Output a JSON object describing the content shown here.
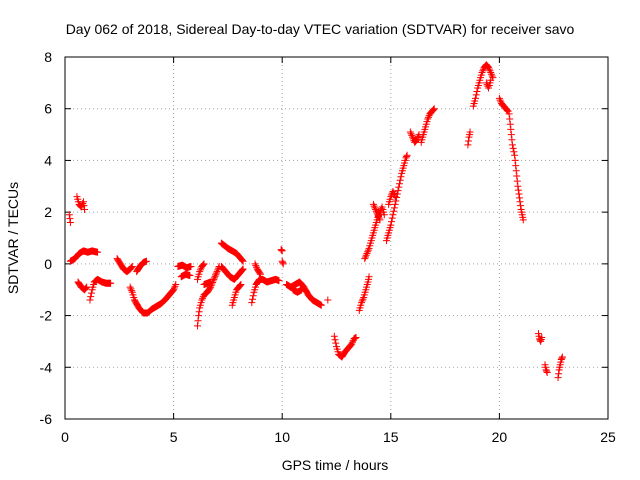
{
  "chart_data": {
    "type": "scatter",
    "title": "Day 062 of 2018, Sidereal Day-to-day VTEC variation (SDTVAR) for receiver savo",
    "xlabel": "GPS time / hours",
    "ylabel": "SDTVAR / TECUs",
    "xlim": [
      0,
      25
    ],
    "ylim": [
      -6,
      8
    ],
    "xticks": [
      0,
      5,
      10,
      15,
      20,
      25
    ],
    "yticks": [
      -6,
      -4,
      -2,
      0,
      2,
      4,
      6,
      8
    ],
    "grid": true,
    "marker": "+",
    "color": "#ff0000",
    "segments": [
      {
        "points": [
          [
            0.2,
            1.9
          ],
          [
            0.25,
            1.6
          ]
        ]
      },
      {
        "points": [
          [
            0.25,
            0.1
          ],
          [
            0.45,
            0.2
          ],
          [
            0.65,
            0.4
          ],
          [
            0.85,
            0.5
          ],
          [
            1.05,
            0.45
          ],
          [
            1.25,
            0.5
          ],
          [
            1.5,
            0.45
          ]
        ]
      },
      {
        "points": [
          [
            0.55,
            2.6
          ],
          [
            0.65,
            2.3
          ],
          [
            0.75,
            2.2
          ],
          [
            0.85,
            2.4
          ],
          [
            0.9,
            2.1
          ]
        ]
      },
      {
        "points": [
          [
            0.6,
            -0.7
          ],
          [
            0.75,
            -0.9
          ],
          [
            0.9,
            -1.0
          ],
          [
            1.0,
            -0.9
          ]
        ]
      },
      {
        "points": [
          [
            1.15,
            -1.4
          ],
          [
            1.25,
            -1.0
          ],
          [
            1.35,
            -0.7
          ],
          [
            1.5,
            -0.6
          ],
          [
            1.7,
            -0.7
          ],
          [
            1.9,
            -0.75
          ],
          [
            2.1,
            -0.75
          ]
        ]
      },
      {
        "points": [
          [
            2.4,
            0.2
          ],
          [
            2.55,
            0.0
          ],
          [
            2.7,
            -0.2
          ],
          [
            2.85,
            -0.3
          ],
          [
            3.0,
            -0.2
          ],
          [
            3.1,
            -0.1
          ]
        ]
      },
      {
        "points": [
          [
            3.0,
            -0.9
          ],
          [
            3.1,
            -1.1
          ],
          [
            3.2,
            -1.4
          ],
          [
            3.4,
            -1.7
          ],
          [
            3.6,
            -1.9
          ],
          [
            3.8,
            -1.9
          ],
          [
            4.0,
            -1.75
          ],
          [
            4.2,
            -1.65
          ],
          [
            4.4,
            -1.55
          ],
          [
            4.6,
            -1.4
          ],
          [
            4.8,
            -1.2
          ],
          [
            5.0,
            -1.0
          ],
          [
            5.1,
            -0.8
          ]
        ]
      },
      {
        "points": [
          [
            3.3,
            -0.3
          ],
          [
            3.45,
            -0.1
          ],
          [
            3.6,
            0.05
          ],
          [
            3.75,
            0.1
          ]
        ]
      },
      {
        "points": [
          [
            5.2,
            -0.1
          ],
          [
            5.4,
            -0.05
          ],
          [
            5.6,
            -0.15
          ],
          [
            5.8,
            -0.1
          ]
        ]
      },
      {
        "points": [
          [
            5.35,
            -0.5
          ],
          [
            5.55,
            -0.4
          ],
          [
            5.75,
            -0.45
          ]
        ]
      },
      {
        "points": [
          [
            6.1,
            -2.4
          ],
          [
            6.15,
            -2.0
          ],
          [
            6.2,
            -1.7
          ],
          [
            6.3,
            -1.4
          ],
          [
            6.4,
            -1.2
          ],
          [
            6.55,
            -1.1
          ],
          [
            6.7,
            -0.9
          ],
          [
            6.85,
            -0.6
          ],
          [
            7.0,
            -0.3
          ],
          [
            7.1,
            -0.1
          ]
        ]
      },
      {
        "points": [
          [
            6.1,
            -0.6
          ],
          [
            6.2,
            -0.3
          ],
          [
            6.3,
            -0.1
          ],
          [
            6.4,
            0.0
          ]
        ]
      },
      {
        "points": [
          [
            6.4,
            -0.8
          ],
          [
            6.55,
            -0.75
          ],
          [
            6.7,
            -0.7
          ]
        ]
      },
      {
        "points": [
          [
            7.2,
            0.8
          ],
          [
            7.35,
            0.7
          ],
          [
            7.5,
            0.6
          ],
          [
            7.7,
            0.5
          ],
          [
            7.9,
            0.4
          ],
          [
            8.1,
            0.2
          ],
          [
            8.2,
            0.1
          ]
        ]
      },
      {
        "points": [
          [
            7.2,
            -0.1
          ],
          [
            7.4,
            -0.3
          ],
          [
            7.6,
            -0.5
          ],
          [
            7.8,
            -0.6
          ],
          [
            8.0,
            -0.4
          ],
          [
            8.2,
            -0.2
          ]
        ]
      },
      {
        "points": [
          [
            7.7,
            -1.6
          ],
          [
            7.8,
            -1.3
          ],
          [
            7.9,
            -1.0
          ],
          [
            8.0,
            -0.9
          ],
          [
            8.1,
            -0.8
          ]
        ]
      },
      {
        "points": [
          [
            8.6,
            -1.5
          ],
          [
            8.7,
            -1.1
          ],
          [
            8.8,
            -0.8
          ],
          [
            8.95,
            -0.6
          ],
          [
            9.1,
            -0.6
          ],
          [
            9.3,
            -0.7
          ],
          [
            9.5,
            -0.65
          ],
          [
            9.7,
            -0.6
          ],
          [
            9.85,
            -0.65
          ]
        ]
      },
      {
        "points": [
          [
            8.75,
            0.0
          ],
          [
            8.85,
            -0.2
          ],
          [
            9.0,
            -0.4
          ]
        ]
      },
      {
        "points": [
          [
            9.95,
            0.55
          ],
          [
            10.0,
            0.5
          ]
        ]
      },
      {
        "points": [
          [
            10.0,
            0.1
          ],
          [
            10.05,
            0.0
          ]
        ]
      },
      {
        "points": [
          [
            10.2,
            -0.8
          ],
          [
            10.4,
            -0.9
          ],
          [
            10.6,
            -0.8
          ],
          [
            10.8,
            -0.7
          ],
          [
            11.0,
            -0.9
          ],
          [
            11.2,
            -1.2
          ],
          [
            11.4,
            -1.4
          ],
          [
            11.6,
            -1.5
          ],
          [
            11.8,
            -1.6
          ]
        ]
      },
      {
        "points": [
          [
            10.5,
            -1.0
          ],
          [
            10.7,
            -1.1
          ],
          [
            10.9,
            -1.0
          ]
        ]
      },
      {
        "points": [
          [
            12.1,
            -1.4
          ]
        ]
      },
      {
        "points": [
          [
            12.4,
            -2.8
          ],
          [
            12.5,
            -3.2
          ],
          [
            12.6,
            -3.5
          ],
          [
            12.75,
            -3.6
          ],
          [
            12.9,
            -3.4
          ],
          [
            13.0,
            -3.3
          ],
          [
            13.1,
            -3.2
          ],
          [
            13.2,
            -3.1
          ],
          [
            13.3,
            -2.9
          ],
          [
            13.4,
            -2.85
          ]
        ]
      },
      {
        "points": [
          [
            13.55,
            -1.8
          ],
          [
            13.65,
            -1.5
          ],
          [
            13.75,
            -1.3
          ],
          [
            13.85,
            -1.0
          ],
          [
            13.95,
            -0.7
          ],
          [
            14.0,
            -0.5
          ]
        ]
      },
      {
        "points": [
          [
            13.8,
            0.2
          ],
          [
            13.9,
            0.4
          ],
          [
            14.0,
            0.6
          ],
          [
            14.1,
            0.9
          ],
          [
            14.2,
            1.2
          ],
          [
            14.3,
            1.5
          ],
          [
            14.4,
            1.8
          ],
          [
            14.5,
            2.0
          ],
          [
            14.6,
            2.2
          ],
          [
            14.7,
            1.9
          ]
        ]
      },
      {
        "points": [
          [
            14.2,
            2.3
          ],
          [
            14.3,
            2.1
          ],
          [
            14.4,
            1.9
          ],
          [
            14.5,
            1.7
          ]
        ]
      },
      {
        "points": [
          [
            14.8,
            0.9
          ],
          [
            14.9,
            1.2
          ],
          [
            15.0,
            1.5
          ],
          [
            15.1,
            1.9
          ],
          [
            15.2,
            2.3
          ],
          [
            15.3,
            2.7
          ],
          [
            15.4,
            3.1
          ],
          [
            15.5,
            3.5
          ],
          [
            15.6,
            3.8
          ],
          [
            15.7,
            4.1
          ],
          [
            15.75,
            4.2
          ]
        ]
      },
      {
        "points": [
          [
            14.9,
            2.3
          ],
          [
            15.0,
            2.6
          ],
          [
            15.1,
            2.8
          ],
          [
            15.2,
            2.6
          ]
        ]
      },
      {
        "points": [
          [
            15.9,
            5.1
          ],
          [
            16.0,
            4.9
          ],
          [
            16.1,
            4.7
          ],
          [
            16.2,
            4.8
          ],
          [
            16.3,
            5.0
          ]
        ]
      },
      {
        "points": [
          [
            16.4,
            4.7
          ],
          [
            16.5,
            5.0
          ],
          [
            16.6,
            5.3
          ],
          [
            16.7,
            5.6
          ],
          [
            16.8,
            5.8
          ],
          [
            16.9,
            5.9
          ],
          [
            17.0,
            6.0
          ]
        ]
      },
      {
        "points": [
          [
            18.55,
            4.6
          ],
          [
            18.6,
            4.9
          ],
          [
            18.65,
            5.1
          ]
        ]
      },
      {
        "points": [
          [
            18.8,
            6.1
          ],
          [
            18.9,
            6.4
          ],
          [
            19.0,
            6.8
          ],
          [
            19.1,
            7.1
          ],
          [
            19.2,
            7.4
          ],
          [
            19.3,
            7.6
          ],
          [
            19.4,
            7.7
          ],
          [
            19.5,
            7.6
          ],
          [
            19.6,
            7.4
          ],
          [
            19.7,
            7.2
          ]
        ]
      },
      {
        "points": [
          [
            19.4,
            7.0
          ],
          [
            19.5,
            6.8
          ],
          [
            19.6,
            7.1
          ]
        ]
      },
      {
        "points": [
          [
            20.0,
            6.4
          ],
          [
            20.1,
            6.2
          ],
          [
            20.2,
            6.1
          ],
          [
            20.3,
            6.0
          ],
          [
            20.4,
            5.9
          ]
        ]
      },
      {
        "points": [
          [
            20.45,
            5.8
          ],
          [
            20.5,
            5.4
          ],
          [
            20.55,
            5.0
          ],
          [
            20.6,
            4.6
          ],
          [
            20.7,
            4.2
          ],
          [
            20.75,
            3.8
          ],
          [
            20.8,
            3.4
          ],
          [
            20.85,
            3.0
          ],
          [
            20.9,
            2.7
          ],
          [
            20.95,
            2.4
          ],
          [
            21.0,
            2.1
          ],
          [
            21.05,
            1.9
          ],
          [
            21.1,
            1.7
          ]
        ]
      },
      {
        "points": [
          [
            21.8,
            -2.7
          ],
          [
            21.85,
            -2.9
          ],
          [
            21.9,
            -3.0
          ],
          [
            21.95,
            -2.85
          ]
        ]
      },
      {
        "points": [
          [
            22.1,
            -3.9
          ],
          [
            22.15,
            -4.1
          ],
          [
            22.2,
            -4.2
          ]
        ]
      },
      {
        "points": [
          [
            22.7,
            -4.4
          ],
          [
            22.75,
            -4.1
          ],
          [
            22.8,
            -3.9
          ],
          [
            22.85,
            -3.7
          ],
          [
            22.9,
            -3.6
          ]
        ]
      }
    ]
  }
}
